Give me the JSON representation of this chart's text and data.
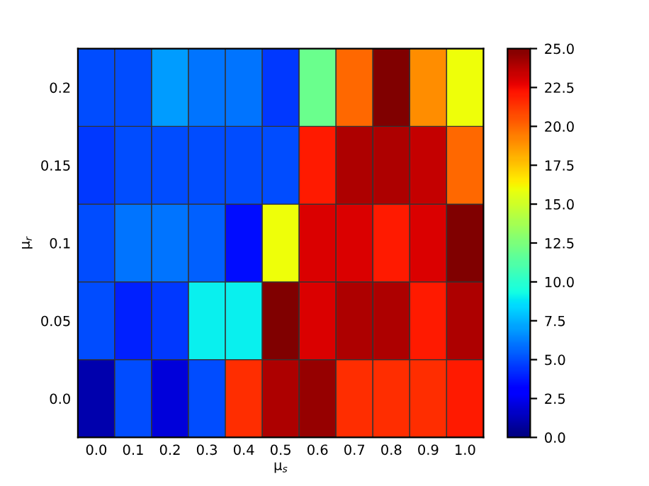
{
  "chart_data": {
    "type": "heatmap",
    "xlabel": "μ$_{s}$",
    "ylabel": "μ$_{r}$",
    "categories": [
      "0.0",
      "0.1",
      "0.2",
      "0.3",
      "0.4",
      "0.5",
      "0.6",
      "0.7",
      "0.8",
      "0.9",
      "1.0"
    ],
    "y_categories": [
      "0.2",
      "0.15",
      "0.1",
      "0.05",
      "0.0"
    ],
    "cells": [
      [
        5,
        5,
        7,
        6,
        6,
        4.5,
        12,
        20,
        25,
        19,
        16
      ],
      [
        4.5,
        5,
        5,
        5,
        5,
        5,
        22,
        24,
        24,
        23.5,
        20
      ],
      [
        5,
        6,
        6,
        5.5,
        3.5,
        16,
        23,
        23,
        22,
        23,
        25
      ],
      [
        5,
        4,
        4.5,
        9,
        9,
        25,
        23,
        24,
        24,
        22,
        24
      ],
      [
        1,
        5,
        2,
        5,
        21.5,
        24,
        24.5,
        21.5,
        21.5,
        21.5,
        22
      ]
    ],
    "clim": [
      0,
      25
    ],
    "cticks": [
      {
        "value": 0,
        "label": "0.0"
      },
      {
        "value": 2.5,
        "label": "2.5"
      },
      {
        "value": 5,
        "label": "5.0"
      },
      {
        "value": 7.5,
        "label": "7.5"
      },
      {
        "value": 10,
        "label": "10.0"
      },
      {
        "value": 12.5,
        "label": "12.5"
      },
      {
        "value": 15,
        "label": "15.0"
      },
      {
        "value": 17.5,
        "label": "17.5"
      },
      {
        "value": 20,
        "label": "20.0"
      },
      {
        "value": 22.5,
        "label": "22.5"
      },
      {
        "value": 25,
        "label": "25.0"
      }
    ]
  }
}
